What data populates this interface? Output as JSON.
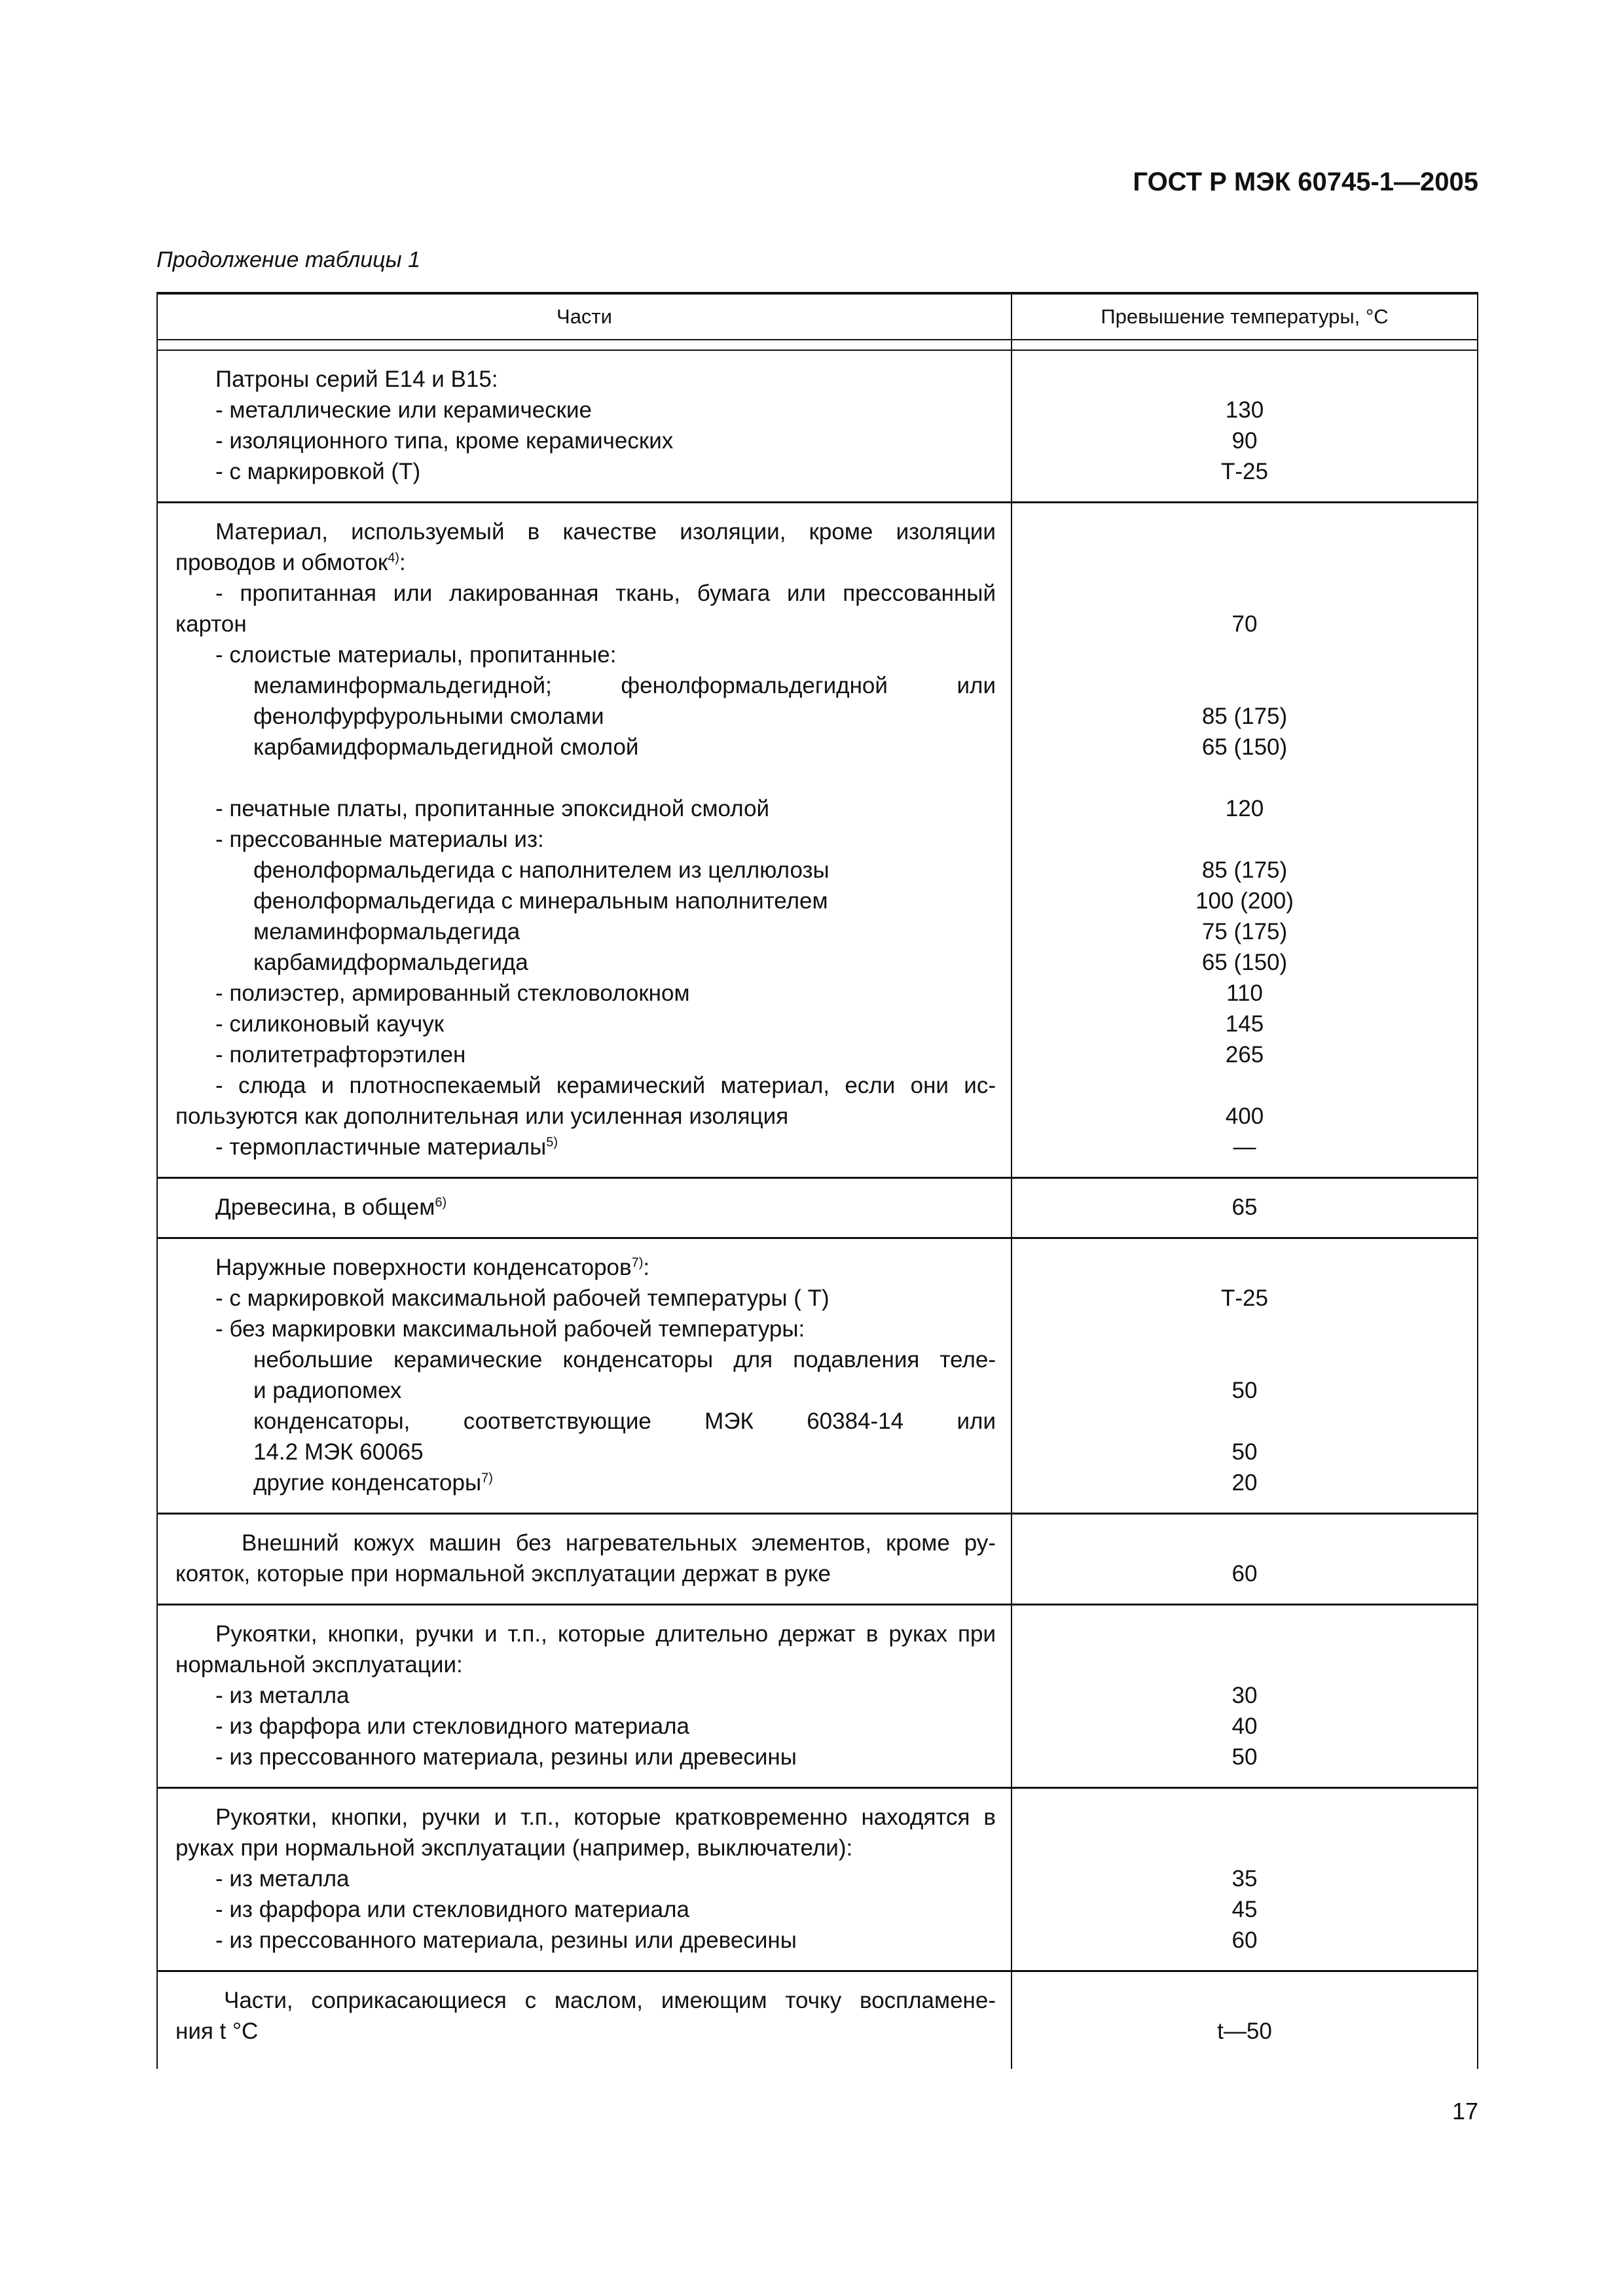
{
  "header": {
    "doc_title": "ГОСТ Р МЭК 60745-1—2005",
    "caption": "Продолжение таблицы 1",
    "page_number": "17"
  },
  "table": {
    "columns": [
      "Части",
      "Превышение температуры, °С"
    ],
    "rows": [
      {
        "lines": [
          {
            "t": "Патроны серий Е14 и В15:",
            "i": 1
          },
          {
            "t": "- металлические или керамические",
            "i": 1,
            "v": "130"
          },
          {
            "t": "- изоляционного типа, кроме керамических",
            "i": 1,
            "v": "90"
          },
          {
            "t": "- с маркировкой (Т)",
            "i": 1,
            "v": "Т-25"
          }
        ]
      },
      {
        "lines": [
          {
            "t": "Материал, используемый в качестве изоляции, кроме изоляции",
            "i": 1,
            "j": true
          },
          {
            "t": "проводов и обмоток",
            "sup": "4)",
            "t2": ":",
            "i": 0
          },
          {
            "t": "- пропитанная или лакированная ткань, бумага или прессованный",
            "i": 1,
            "j": true
          },
          {
            "t": "картон",
            "i": 0,
            "v": "70"
          },
          {
            "t": "- слоистые материалы, пропитанные:",
            "i": 1
          },
          {
            "t": "меламинформальдегидной; фенолформальдегидной или",
            "i": 2,
            "j": true
          },
          {
            "t": "фенолфурфурольными  смолами",
            "i": 2,
            "v": "85 (175)"
          },
          {
            "t": "карбамидформальдегидной  смолой",
            "i": 2,
            "v": "65 (150)"
          },
          {
            "t": "",
            "i": 0
          },
          {
            "t": "- печатные платы, пропитанные эпоксидной смолой",
            "i": 1,
            "v": "120"
          },
          {
            "t": "- прессованные материалы из:",
            "i": 1
          },
          {
            "t": "фенолформальдегида  с наполнителем из целлюлозы",
            "i": 2,
            "v": "85 (175)"
          },
          {
            "t": "фенолформальдегида с минеральным наполнителем",
            "i": 2,
            "v": "100 (200)"
          },
          {
            "t": "меламинформальдегида",
            "i": 2,
            "v": "75 (175)"
          },
          {
            "t": "карбамидформальдегида",
            "i": 2,
            "v": "65 (150)"
          },
          {
            "t": "- полиэстер, армированный стекловолокном",
            "i": 1,
            "v": "110"
          },
          {
            "t": "- силиконовый каучук",
            "i": 1,
            "v": "145"
          },
          {
            "t": "- политетрафторэтилен",
            "i": 1,
            "v": "265"
          },
          {
            "t": "- слюда и плотноспекаемый керамический материал, если они ис-",
            "i": 1,
            "j": true
          },
          {
            "t": "пользуются как дополнительная или усиленная изоляция",
            "i": 0,
            "v": "400"
          },
          {
            "t": "- термопластичные материалы",
            "sup": "5)",
            "i": 1,
            "v": "—"
          }
        ]
      },
      {
        "lines": [
          {
            "t": "Древесина, в общем",
            "sup": "6)",
            "i": 1,
            "v": "65"
          }
        ]
      },
      {
        "lines": [
          {
            "t": "Наружные поверхности конденсаторов",
            "sup": "7)",
            "t2": ":",
            "i": 1
          },
          {
            "t": "- с маркировкой максимальной рабочей температуры ( Т)",
            "i": 1,
            "v": "Т-25"
          },
          {
            "t": "- без маркировки максимальной рабочей температуры:",
            "i": 1
          },
          {
            "t": "небольшие керамические конденсаторы для подавления теле-",
            "i": 2,
            "j": true
          },
          {
            "t": "и радиопомех",
            "i": 2,
            "v": "50"
          },
          {
            "t": "конденсаторы, соответствующие МЭК 60384-14 или",
            "i": 2,
            "j": true
          },
          {
            "t": "14.2 МЭК 60065",
            "i": 2,
            "v": "50"
          },
          {
            "t": "другие конденсаторы",
            "sup": "7)",
            "i": 2,
            "v": "20"
          }
        ]
      },
      {
        "lines": [
          {
            "t": "Внешний кожух машин без нагревательных элементов, кроме ру-",
            "i": 3,
            "j": true
          },
          {
            "t": "кояток, которые при нормальной эксплуатации держат в руке",
            "i": 0,
            "v": "60"
          }
        ]
      },
      {
        "lines": [
          {
            "t": "Рукоятки, кнопки, ручки и т.п., которые длительно держат в руках при",
            "i": 1,
            "j": true
          },
          {
            "t": "нормальной эксплуатации:",
            "i": 0
          },
          {
            "t": "- из металла",
            "i": 1,
            "v": "30"
          },
          {
            "t": "- из фарфора или стекловидного материала",
            "i": 1,
            "v": "40"
          },
          {
            "t": "- из прессованного материала, резины или древесины",
            "i": 1,
            "v": "50"
          }
        ]
      },
      {
        "lines": [
          {
            "t": "Рукоятки, кнопки, ручки и т.п., которые кратковременно находятся в",
            "i": 1,
            "j": true
          },
          {
            "t": "руках при нормальной эксплуатации (например, выключатели):",
            "i": 0
          },
          {
            "t": "- из металла",
            "i": 1,
            "v": "35"
          },
          {
            "t": "- из фарфора или стекловидного материала",
            "i": 1,
            "v": "45"
          },
          {
            "t": "- из прессованного материала, резины или древесины",
            "i": 1,
            "v": "60"
          }
        ]
      },
      {
        "lines": [
          {
            "t": "Части, соприкасающиеся с маслом, имеющим точку воспламене-",
            "i": 4,
            "j": true
          },
          {
            "t": "ния t °С",
            "i": 0,
            "v": "t—50"
          }
        ]
      }
    ]
  }
}
